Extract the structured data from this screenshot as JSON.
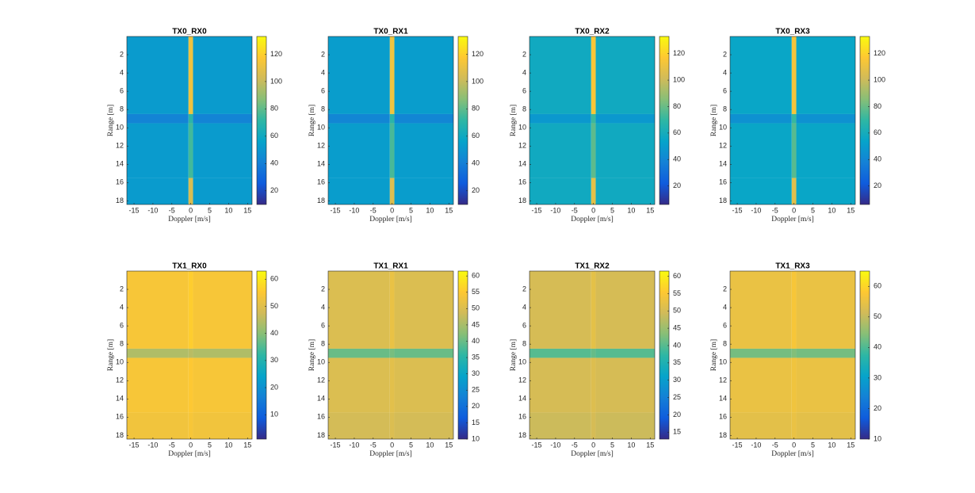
{
  "chart_data": [
    {
      "type": "heatmap",
      "title": "TX0_RX0",
      "x_label": "Doppler [m/s]",
      "y_label": "Range [m]",
      "xlim": [
        -16.9,
        16.2
      ],
      "xticks": [
        -15,
        -10,
        -5,
        0,
        5,
        10,
        15
      ],
      "ylim": [
        0,
        18.4
      ],
      "yticks": [
        2,
        4,
        6,
        8,
        10,
        12,
        14,
        16,
        18
      ],
      "x_edges": [
        -16.9,
        -0.6,
        0.6,
        16.2
      ],
      "y_edges": [
        0,
        8.5,
        9.5,
        15.5,
        18.4
      ],
      "z": [
        [
          52,
          112,
          52
        ],
        [
          42,
          70,
          42
        ],
        [
          52,
          75,
          52
        ],
        [
          52,
          105,
          52
        ]
      ],
      "clim": [
        10,
        133
      ],
      "cticks": [
        20,
        40,
        60,
        80,
        100,
        120
      ],
      "colormap": [
        "#352a87",
        "#0f5cdd",
        "#1481d6",
        "#06a4ca",
        "#2eb7a4",
        "#87bf77",
        "#d1bb59",
        "#fec832",
        "#f9fb0e"
      ]
    },
    {
      "type": "heatmap",
      "title": "TX0_RX1",
      "x_label": "Doppler [m/s]",
      "y_label": "Range [m]",
      "xlim": [
        -16.9,
        16.2
      ],
      "xticks": [
        -15,
        -10,
        -5,
        0,
        5,
        10,
        15
      ],
      "ylim": [
        0,
        18.4
      ],
      "yticks": [
        2,
        4,
        6,
        8,
        10,
        12,
        14,
        16,
        18
      ],
      "x_edges": [
        -16.9,
        -0.6,
        0.6,
        16.2
      ],
      "y_edges": [
        0,
        8.5,
        9.5,
        15.5,
        18.4
      ],
      "z": [
        [
          53,
          113,
          53
        ],
        [
          43,
          70,
          43
        ],
        [
          53,
          76,
          53
        ],
        [
          53,
          106,
          53
        ]
      ],
      "clim": [
        10,
        133
      ],
      "cticks": [
        20,
        40,
        60,
        80,
        100,
        120
      ],
      "colormap": [
        "#352a87",
        "#0f5cdd",
        "#1481d6",
        "#06a4ca",
        "#2eb7a4",
        "#87bf77",
        "#d1bb59",
        "#fec832",
        "#f9fb0e"
      ]
    },
    {
      "type": "heatmap",
      "title": "TX0_RX2",
      "x_label": "Doppler [m/s]",
      "y_label": "Range [m]",
      "xlim": [
        -16.9,
        16.2
      ],
      "xticks": [
        -15,
        -10,
        -5,
        0,
        5,
        10,
        15
      ],
      "ylim": [
        0,
        18.4
      ],
      "yticks": [
        2,
        4,
        6,
        8,
        10,
        12,
        14,
        16,
        18
      ],
      "x_edges": [
        -16.9,
        -0.6,
        0.6,
        16.2
      ],
      "y_edges": [
        0,
        8.5,
        9.5,
        15.5,
        18.4
      ],
      "z": [
        [
          58,
          115,
          58
        ],
        [
          48,
          72,
          48
        ],
        [
          58,
          78,
          58
        ],
        [
          58,
          108,
          58
        ]
      ],
      "clim": [
        6,
        133
      ],
      "cticks": [
        20,
        40,
        60,
        80,
        100,
        120
      ],
      "colormap": [
        "#352a87",
        "#0f5cdd",
        "#1481d6",
        "#06a4ca",
        "#2eb7a4",
        "#87bf77",
        "#d1bb59",
        "#fec832",
        "#f9fb0e"
      ]
    },
    {
      "type": "heatmap",
      "title": "TX0_RX3",
      "x_label": "Doppler [m/s]",
      "y_label": "Range [m]",
      "xlim": [
        -16.9,
        16.2
      ],
      "xticks": [
        -15,
        -10,
        -5,
        0,
        5,
        10,
        15
      ],
      "ylim": [
        0,
        18.4
      ],
      "yticks": [
        2,
        4,
        6,
        8,
        10,
        12,
        14,
        16,
        18
      ],
      "x_edges": [
        -16.9,
        -0.6,
        0.6,
        16.2
      ],
      "y_edges": [
        0,
        8.5,
        9.5,
        15.5,
        18.4
      ],
      "z": [
        [
          55,
          114,
          55
        ],
        [
          45,
          71,
          45
        ],
        [
          55,
          77,
          55
        ],
        [
          55,
          107,
          55
        ]
      ],
      "clim": [
        6,
        133
      ],
      "cticks": [
        20,
        40,
        60,
        80,
        100,
        120
      ],
      "colormap": [
        "#352a87",
        "#0f5cdd",
        "#1481d6",
        "#06a4ca",
        "#2eb7a4",
        "#87bf77",
        "#d1bb59",
        "#fec832",
        "#f9fb0e"
      ]
    },
    {
      "type": "heatmap",
      "title": "TX1_RX0",
      "x_label": "Doppler [m/s]",
      "y_label": "Range [m]",
      "xlim": [
        -16.9,
        16.2
      ],
      "xticks": [
        -15,
        -10,
        -5,
        0,
        5,
        10,
        15
      ],
      "ylim": [
        0,
        18.4
      ],
      "yticks": [
        2,
        4,
        6,
        8,
        10,
        12,
        14,
        16,
        18
      ],
      "x_edges": [
        -16.9,
        -0.6,
        0.6,
        16.2
      ],
      "y_edges": [
        0,
        8.5,
        9.5,
        15.5,
        18.4
      ],
      "z": [
        [
          54,
          56,
          54
        ],
        [
          44,
          45,
          44
        ],
        [
          54,
          55,
          54
        ],
        [
          53,
          54,
          53
        ]
      ],
      "clim": [
        1,
        63
      ],
      "cticks": [
        10,
        20,
        30,
        40,
        50,
        60
      ],
      "colormap": [
        "#352a87",
        "#0f5cdd",
        "#1481d6",
        "#06a4ca",
        "#2eb7a4",
        "#87bf77",
        "#d1bb59",
        "#fec832",
        "#f9fb0e"
      ]
    },
    {
      "type": "heatmap",
      "title": "TX1_RX1",
      "x_label": "Doppler [m/s]",
      "y_label": "Range [m]",
      "xlim": [
        -16.9,
        16.2
      ],
      "xticks": [
        -15,
        -10,
        -5,
        0,
        5,
        10,
        15
      ],
      "ylim": [
        0,
        18.4
      ],
      "yticks": [
        2,
        4,
        6,
        8,
        10,
        12,
        14,
        16,
        18
      ],
      "x_edges": [
        -16.9,
        -0.6,
        0.6,
        16.2
      ],
      "y_edges": [
        0,
        8.5,
        9.5,
        15.5,
        18.4
      ],
      "z": [
        [
          50,
          52,
          50
        ],
        [
          40,
          41,
          40
        ],
        [
          50,
          51,
          50
        ],
        [
          49,
          50,
          49
        ]
      ],
      "clim": [
        10,
        61.5
      ],
      "cticks": [
        10,
        15,
        20,
        25,
        30,
        35,
        40,
        45,
        50,
        55,
        60
      ],
      "colormap": [
        "#352a87",
        "#0f5cdd",
        "#1481d6",
        "#06a4ca",
        "#2eb7a4",
        "#87bf77",
        "#d1bb59",
        "#fec832",
        "#f9fb0e"
      ]
    },
    {
      "type": "heatmap",
      "title": "TX1_RX2",
      "x_label": "Doppler [m/s]",
      "y_label": "Range [m]",
      "xlim": [
        -16.9,
        16.2
      ],
      "xticks": [
        -15,
        -10,
        -5,
        0,
        5,
        10,
        15
      ],
      "ylim": [
        0,
        18.4
      ],
      "yticks": [
        2,
        4,
        6,
        8,
        10,
        12,
        14,
        16,
        18
      ],
      "x_edges": [
        -16.9,
        -0.6,
        0.6,
        16.2
      ],
      "y_edges": [
        0,
        8.5,
        9.5,
        15.5,
        18.4
      ],
      "z": [
        [
          50,
          52,
          50
        ],
        [
          40,
          41,
          40
        ],
        [
          50,
          51,
          50
        ],
        [
          49,
          50,
          49
        ]
      ],
      "clim": [
        13,
        61.5
      ],
      "cticks": [
        15,
        20,
        25,
        30,
        35,
        40,
        45,
        50,
        55,
        60
      ],
      "colormap": [
        "#352a87",
        "#0f5cdd",
        "#1481d6",
        "#06a4ca",
        "#2eb7a4",
        "#87bf77",
        "#d1bb59",
        "#fec832",
        "#f9fb0e"
      ]
    },
    {
      "type": "heatmap",
      "title": "TX1_RX3",
      "x_label": "Doppler [m/s]",
      "y_label": "Range [m]",
      "xlim": [
        -16.9,
        16.2
      ],
      "xticks": [
        -15,
        -10,
        -5,
        0,
        5,
        10,
        15
      ],
      "ylim": [
        0,
        18.4
      ],
      "yticks": [
        2,
        4,
        6,
        8,
        10,
        12,
        14,
        16,
        18
      ],
      "x_edges": [
        -16.9,
        -0.6,
        0.6,
        16.2
      ],
      "y_edges": [
        0,
        8.5,
        9.5,
        15.5,
        18.4
      ],
      "z": [
        [
          55,
          57,
          55
        ],
        [
          43,
          44,
          43
        ],
        [
          55,
          56,
          55
        ],
        [
          54,
          55,
          54
        ]
      ],
      "clim": [
        10,
        65
      ],
      "cticks": [
        10,
        20,
        30,
        40,
        50,
        60
      ],
      "colormap": [
        "#352a87",
        "#0f5cdd",
        "#1481d6",
        "#06a4ca",
        "#2eb7a4",
        "#87bf77",
        "#d1bb59",
        "#fec832",
        "#f9fb0e"
      ]
    }
  ]
}
